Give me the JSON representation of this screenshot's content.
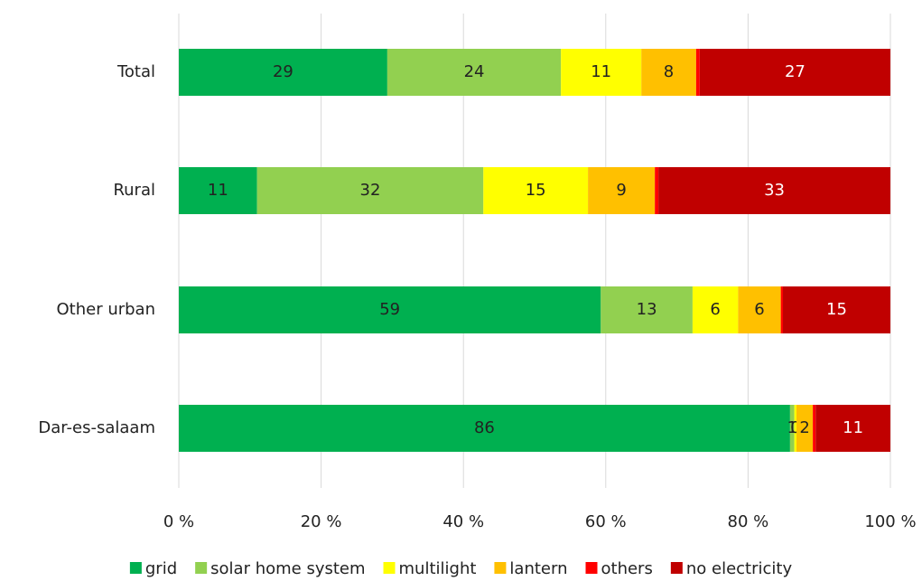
{
  "chart_data": {
    "type": "stacked-bar-horizontal",
    "categories": [
      "Total",
      "Rural",
      "Other urban",
      "Dar-es-salaam"
    ],
    "series": [
      {
        "name": "grid",
        "color": "#00b050",
        "values": [
          29.3,
          11.0,
          59.3,
          85.9
        ],
        "value_labels": [
          "29",
          "11",
          "59",
          "86"
        ]
      },
      {
        "name": "solar home system",
        "color": "#92d050",
        "values": [
          24.4,
          31.8,
          12.9,
          0.6
        ],
        "value_labels": [
          "24",
          "32",
          "13",
          "1"
        ]
      },
      {
        "name": "multilight",
        "color": "#ffff00",
        "values": [
          11.3,
          14.7,
          6.4,
          0.3
        ],
        "value_labels": [
          "11",
          "15",
          "6",
          "0"
        ]
      },
      {
        "name": "lantern",
        "color": "#ffc000",
        "values": [
          7.7,
          9.4,
          6.0,
          2.3
        ],
        "value_labels": [
          "8",
          "9",
          "6",
          "2"
        ]
      },
      {
        "name": "others",
        "color": "#ff0000",
        "values": [
          0.5,
          0.5,
          0.3,
          0.4
        ],
        "value_labels": [
          null,
          null,
          null,
          null
        ]
      },
      {
        "name": "no electricity",
        "color": "#c00000",
        "values": [
          26.8,
          32.6,
          15.1,
          10.5
        ],
        "value_labels": [
          "27",
          "33",
          "15",
          "11"
        ]
      }
    ],
    "xlim": [
      0,
      100
    ],
    "xticks": [
      {
        "value": 0,
        "label": "0 %"
      },
      {
        "value": 20,
        "label": "20 %"
      },
      {
        "value": 40,
        "label": "40 %"
      },
      {
        "value": 60,
        "label": "60 %"
      },
      {
        "value": 80,
        "label": "80 %"
      },
      {
        "value": 100,
        "label": "100 %"
      }
    ],
    "grid": true,
    "legend": "bottom"
  }
}
